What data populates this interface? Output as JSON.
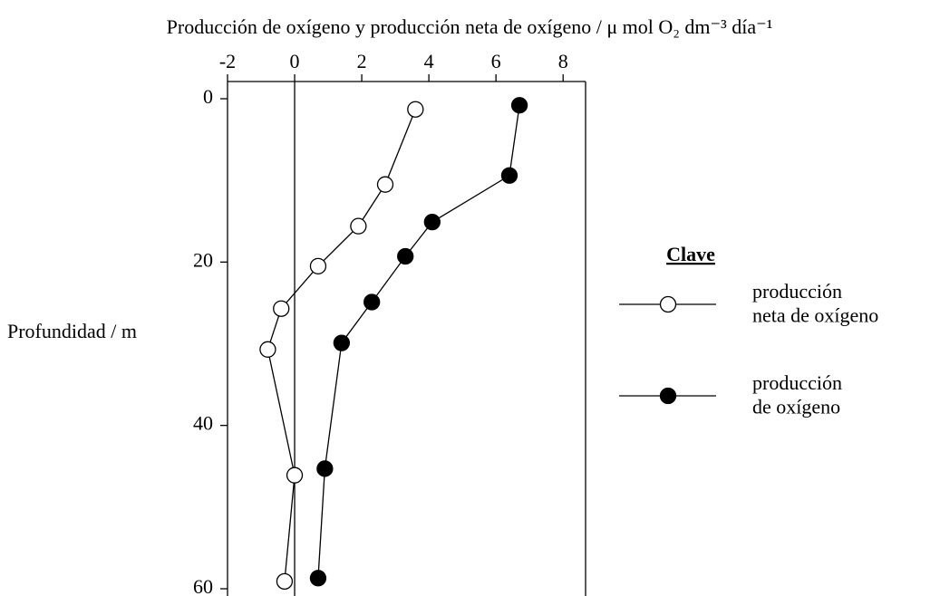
{
  "chart_data": {
    "type": "line",
    "title": "Producción de oxígeno y producción neta de oxígeno / μ mol O₂ dm⁻³ día⁻¹",
    "y_label": "Profundidad / m",
    "legend_title": "Clave",
    "xlim": [
      -2,
      8.67
    ],
    "xticks": [
      -2,
      0,
      2,
      4,
      6,
      8
    ],
    "ylim": [
      0,
      60
    ],
    "yticks": [
      0,
      20,
      40,
      60
    ],
    "y_inverted": true,
    "series": [
      {
        "name": "producción\nneta de oxígeno",
        "color": "#000000",
        "marker_fill": "#ffffff",
        "x": [
          3.6,
          2.7,
          1.9,
          0.7,
          -0.4,
          -0.8,
          0.0,
          -0.3
        ],
        "y": [
          1.3,
          10.5,
          15.6,
          20.5,
          25.7,
          30.7,
          46.1,
          59.1
        ]
      },
      {
        "name": "producción\nde oxígeno",
        "color": "#000000",
        "marker_fill": "#000000",
        "x": [
          6.7,
          6.4,
          4.1,
          3.3,
          2.3,
          1.4,
          0.9,
          0.7
        ],
        "y": [
          0.8,
          9.4,
          15.1,
          19.3,
          24.9,
          29.9,
          45.3,
          58.7
        ]
      }
    ]
  }
}
